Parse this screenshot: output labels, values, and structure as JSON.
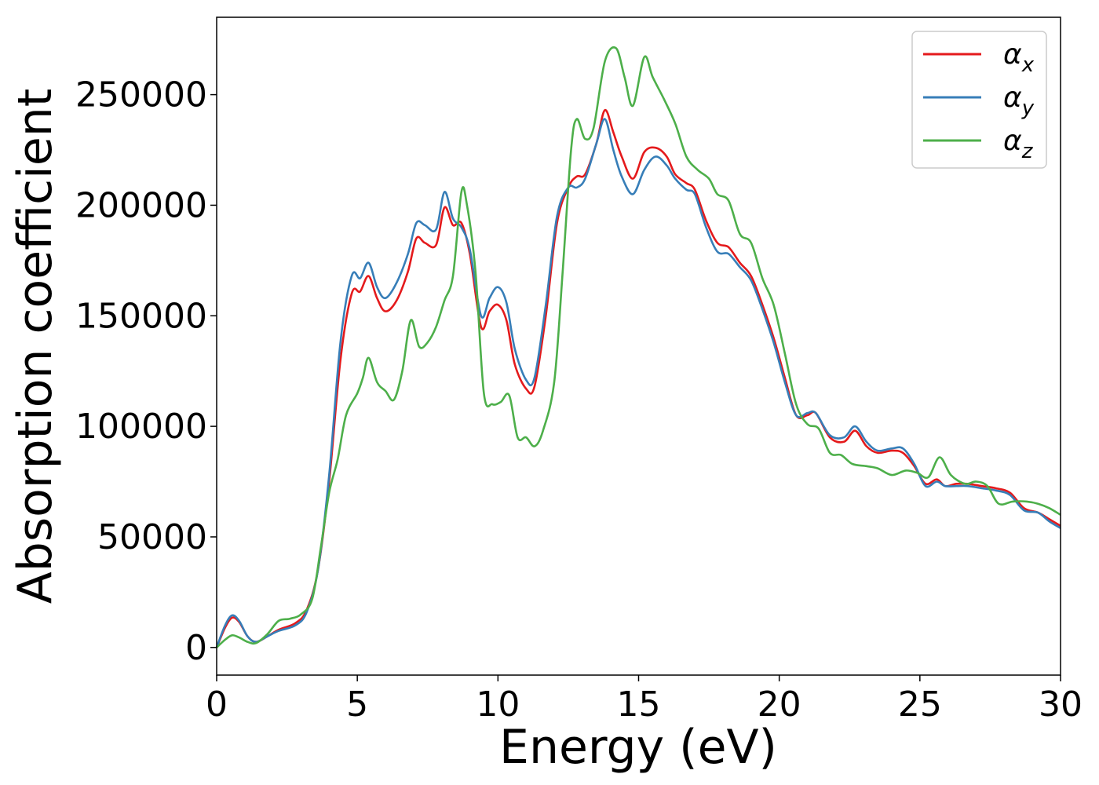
{
  "chart_data": {
    "type": "line",
    "xlabel": "Energy (eV)",
    "ylabel": "Absorption coefficient",
    "xlim": [
      0,
      30
    ],
    "ylim": [
      -12500,
      285000
    ],
    "xticks": [
      0,
      5,
      10,
      15,
      20,
      25,
      30
    ],
    "yticks": [
      0,
      50000,
      100000,
      150000,
      200000,
      250000
    ],
    "grid": false,
    "legend_position": "top-right",
    "series": [
      {
        "name": "α",
        "sub": "x",
        "color": "#e41a1c",
        "points": [
          [
            0,
            0
          ],
          [
            0.3,
            9000
          ],
          [
            0.55,
            13500
          ],
          [
            0.8,
            11500
          ],
          [
            1.1,
            5000
          ],
          [
            1.4,
            2500
          ],
          [
            1.8,
            5000
          ],
          [
            2.2,
            8000
          ],
          [
            2.8,
            11000
          ],
          [
            3.2,
            17000
          ],
          [
            3.6,
            35000
          ],
          [
            4.0,
            75000
          ],
          [
            4.4,
            130000
          ],
          [
            4.8,
            160000
          ],
          [
            5.1,
            161000
          ],
          [
            5.4,
            168000
          ],
          [
            5.7,
            158000
          ],
          [
            6.0,
            152000
          ],
          [
            6.4,
            157000
          ],
          [
            6.8,
            170000
          ],
          [
            7.1,
            185000
          ],
          [
            7.4,
            183000
          ],
          [
            7.8,
            182000
          ],
          [
            8.1,
            199000
          ],
          [
            8.4,
            191000
          ],
          [
            8.7,
            192000
          ],
          [
            9.0,
            178000
          ],
          [
            9.4,
            145000
          ],
          [
            9.7,
            152000
          ],
          [
            10.0,
            155000
          ],
          [
            10.3,
            148000
          ],
          [
            10.6,
            128000
          ],
          [
            11.0,
            117000
          ],
          [
            11.3,
            118000
          ],
          [
            11.7,
            150000
          ],
          [
            12.1,
            192000
          ],
          [
            12.5,
            208000
          ],
          [
            12.8,
            213000
          ],
          [
            13.1,
            214000
          ],
          [
            13.5,
            228000
          ],
          [
            13.8,
            243000
          ],
          [
            14.1,
            233000
          ],
          [
            14.4,
            222000
          ],
          [
            14.8,
            212000
          ],
          [
            15.2,
            224000
          ],
          [
            15.6,
            226000
          ],
          [
            16.0,
            222000
          ],
          [
            16.3,
            214000
          ],
          [
            16.7,
            210000
          ],
          [
            17.0,
            207000
          ],
          [
            17.4,
            193000
          ],
          [
            17.8,
            183000
          ],
          [
            18.2,
            181000
          ],
          [
            18.6,
            174000
          ],
          [
            19.0,
            168000
          ],
          [
            19.4,
            155000
          ],
          [
            19.8,
            140000
          ],
          [
            20.2,
            122000
          ],
          [
            20.6,
            105000
          ],
          [
            21.0,
            105000
          ],
          [
            21.3,
            106000
          ],
          [
            21.8,
            95000
          ],
          [
            22.3,
            93000
          ],
          [
            22.7,
            98000
          ],
          [
            23.1,
            91000
          ],
          [
            23.5,
            88000
          ],
          [
            24.0,
            89000
          ],
          [
            24.4,
            88000
          ],
          [
            24.8,
            82000
          ],
          [
            25.2,
            74000
          ],
          [
            25.6,
            76000
          ],
          [
            25.9,
            73000
          ],
          [
            26.3,
            74000
          ],
          [
            26.7,
            74000
          ],
          [
            27.2,
            73000
          ],
          [
            27.7,
            72000
          ],
          [
            28.2,
            70000
          ],
          [
            28.7,
            63000
          ],
          [
            29.2,
            61000
          ],
          [
            29.6,
            58000
          ],
          [
            30.0,
            55000
          ]
        ]
      },
      {
        "name": "α",
        "sub": "y",
        "color": "#377eb8",
        "points": [
          [
            0,
            0
          ],
          [
            0.3,
            10000
          ],
          [
            0.55,
            14500
          ],
          [
            0.8,
            12000
          ],
          [
            1.1,
            5000
          ],
          [
            1.4,
            2500
          ],
          [
            1.8,
            5000
          ],
          [
            2.2,
            7500
          ],
          [
            2.8,
            10000
          ],
          [
            3.2,
            16000
          ],
          [
            3.6,
            35000
          ],
          [
            4.0,
            78000
          ],
          [
            4.4,
            138000
          ],
          [
            4.8,
            168000
          ],
          [
            5.1,
            167000
          ],
          [
            5.4,
            174000
          ],
          [
            5.7,
            163000
          ],
          [
            6.0,
            158000
          ],
          [
            6.4,
            165000
          ],
          [
            6.8,
            178000
          ],
          [
            7.1,
            192000
          ],
          [
            7.4,
            191000
          ],
          [
            7.8,
            189000
          ],
          [
            8.1,
            206000
          ],
          [
            8.4,
            194000
          ],
          [
            8.7,
            190000
          ],
          [
            9.0,
            180000
          ],
          [
            9.4,
            150000
          ],
          [
            9.7,
            158000
          ],
          [
            10.0,
            163000
          ],
          [
            10.3,
            156000
          ],
          [
            10.6,
            135000
          ],
          [
            11.0,
            121000
          ],
          [
            11.3,
            122000
          ],
          [
            11.7,
            155000
          ],
          [
            12.1,
            195000
          ],
          [
            12.5,
            208000
          ],
          [
            12.8,
            208000
          ],
          [
            13.1,
            212000
          ],
          [
            13.5,
            228000
          ],
          [
            13.8,
            239000
          ],
          [
            14.1,
            225000
          ],
          [
            14.4,
            213000
          ],
          [
            14.8,
            205000
          ],
          [
            15.2,
            216000
          ],
          [
            15.6,
            222000
          ],
          [
            16.0,
            218000
          ],
          [
            16.3,
            212000
          ],
          [
            16.7,
            207000
          ],
          [
            17.0,
            205000
          ],
          [
            17.4,
            190000
          ],
          [
            17.8,
            179000
          ],
          [
            18.2,
            178000
          ],
          [
            18.6,
            172000
          ],
          [
            19.0,
            166000
          ],
          [
            19.4,
            153000
          ],
          [
            19.8,
            138000
          ],
          [
            20.2,
            120000
          ],
          [
            20.6,
            105000
          ],
          [
            21.0,
            106000
          ],
          [
            21.3,
            106000
          ],
          [
            21.8,
            96000
          ],
          [
            22.3,
            95000
          ],
          [
            22.7,
            100000
          ],
          [
            23.1,
            93000
          ],
          [
            23.5,
            89000
          ],
          [
            24.0,
            90000
          ],
          [
            24.4,
            90000
          ],
          [
            24.8,
            83000
          ],
          [
            25.2,
            73000
          ],
          [
            25.6,
            75000
          ],
          [
            25.9,
            73000
          ],
          [
            26.3,
            73000
          ],
          [
            26.7,
            73000
          ],
          [
            27.2,
            72000
          ],
          [
            27.7,
            71000
          ],
          [
            28.2,
            69000
          ],
          [
            28.7,
            62000
          ],
          [
            29.2,
            61000
          ],
          [
            29.6,
            57000
          ],
          [
            30.0,
            54000
          ]
        ]
      },
      {
        "name": "α",
        "sub": "z",
        "color": "#4daf4a",
        "points": [
          [
            0,
            0
          ],
          [
            0.3,
            3500
          ],
          [
            0.55,
            5500
          ],
          [
            0.8,
            4500
          ],
          [
            1.1,
            2500
          ],
          [
            1.4,
            2000
          ],
          [
            1.8,
            6000
          ],
          [
            2.2,
            12000
          ],
          [
            2.6,
            13000
          ],
          [
            3.0,
            15000
          ],
          [
            3.4,
            22000
          ],
          [
            3.7,
            45000
          ],
          [
            4.0,
            70000
          ],
          [
            4.3,
            85000
          ],
          [
            4.6,
            105000
          ],
          [
            5.0,
            115000
          ],
          [
            5.2,
            122000
          ],
          [
            5.4,
            131000
          ],
          [
            5.7,
            120000
          ],
          [
            6.0,
            116000
          ],
          [
            6.3,
            112000
          ],
          [
            6.6,
            125000
          ],
          [
            6.9,
            148000
          ],
          [
            7.2,
            136000
          ],
          [
            7.5,
            138000
          ],
          [
            7.8,
            145000
          ],
          [
            8.1,
            157000
          ],
          [
            8.4,
            168000
          ],
          [
            8.7,
            206000
          ],
          [
            8.9,
            200000
          ],
          [
            9.2,
            170000
          ],
          [
            9.5,
            115000
          ],
          [
            9.8,
            110000
          ],
          [
            10.1,
            111000
          ],
          [
            10.4,
            114000
          ],
          [
            10.7,
            95000
          ],
          [
            11.0,
            95000
          ],
          [
            11.3,
            91000
          ],
          [
            11.6,
            98000
          ],
          [
            12.0,
            120000
          ],
          [
            12.3,
            170000
          ],
          [
            12.6,
            225000
          ],
          [
            12.8,
            239000
          ],
          [
            13.1,
            230000
          ],
          [
            13.4,
            235000
          ],
          [
            13.8,
            265000
          ],
          [
            14.2,
            271000
          ],
          [
            14.5,
            258000
          ],
          [
            14.8,
            245000
          ],
          [
            15.2,
            267000
          ],
          [
            15.5,
            258000
          ],
          [
            15.9,
            248000
          ],
          [
            16.3,
            237000
          ],
          [
            16.7,
            222000
          ],
          [
            17.1,
            216000
          ],
          [
            17.5,
            212000
          ],
          [
            17.8,
            205000
          ],
          [
            18.2,
            202000
          ],
          [
            18.6,
            187000
          ],
          [
            19.0,
            183000
          ],
          [
            19.4,
            167000
          ],
          [
            19.8,
            155000
          ],
          [
            20.2,
            133000
          ],
          [
            20.6,
            110000
          ],
          [
            21.0,
            101000
          ],
          [
            21.4,
            99000
          ],
          [
            21.8,
            88000
          ],
          [
            22.2,
            87000
          ],
          [
            22.6,
            83000
          ],
          [
            23.1,
            82000
          ],
          [
            23.5,
            81000
          ],
          [
            24.0,
            78000
          ],
          [
            24.5,
            80000
          ],
          [
            24.9,
            79000
          ],
          [
            25.3,
            77000
          ],
          [
            25.7,
            86000
          ],
          [
            26.1,
            78000
          ],
          [
            26.6,
            74000
          ],
          [
            27.0,
            75000
          ],
          [
            27.4,
            73000
          ],
          [
            27.8,
            65000
          ],
          [
            28.3,
            66000
          ],
          [
            28.8,
            66000
          ],
          [
            29.2,
            65000
          ],
          [
            29.6,
            63000
          ],
          [
            30.0,
            60000
          ]
        ]
      }
    ]
  }
}
